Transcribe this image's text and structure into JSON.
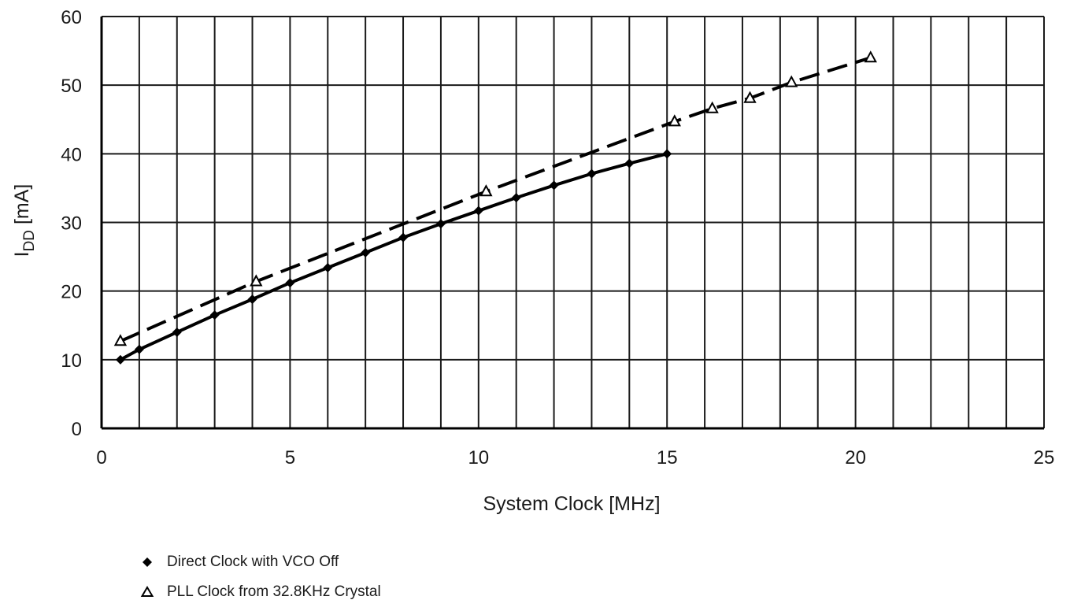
{
  "chart_data": {
    "type": "line",
    "xlabel": "System Clock [MHz]",
    "ylabel": {
      "main": "I",
      "subscript": "DD",
      "suffix": " [mA]"
    },
    "xlim": [
      0,
      25
    ],
    "ylim": [
      0,
      60
    ],
    "x_ticks": [
      0,
      5,
      10,
      15,
      20,
      25
    ],
    "y_ticks": [
      0,
      10,
      20,
      30,
      40,
      50,
      60
    ],
    "x_minor_step": 1,
    "grid": true,
    "legend_position": "bottom-left",
    "series": [
      {
        "name": "Direct Clock with VCO Off",
        "marker": "diamond",
        "line_style": "solid",
        "marker_color": "#000000",
        "x": [
          0.5,
          1,
          2,
          3,
          4,
          5,
          6,
          7,
          8,
          9,
          10,
          11,
          12,
          13,
          14,
          15
        ],
        "y": [
          10,
          11.5,
          14,
          16.5,
          18.8,
          21.2,
          23.4,
          25.6,
          27.8,
          29.8,
          31.7,
          33.6,
          35.4,
          37.1,
          38.6,
          40
        ]
      },
      {
        "name": "PLL Clock from 32.8KHz Crystal",
        "marker": "triangle-open",
        "line_style": "dashed",
        "marker_color": "#000000",
        "x": [
          0.5,
          4.1,
          10.2,
          15.2,
          16.2,
          17.2,
          18.3,
          20.4
        ],
        "y": [
          12.7,
          21.4,
          34.5,
          44.7,
          46.6,
          48.1,
          50.4,
          54
        ]
      }
    ]
  }
}
